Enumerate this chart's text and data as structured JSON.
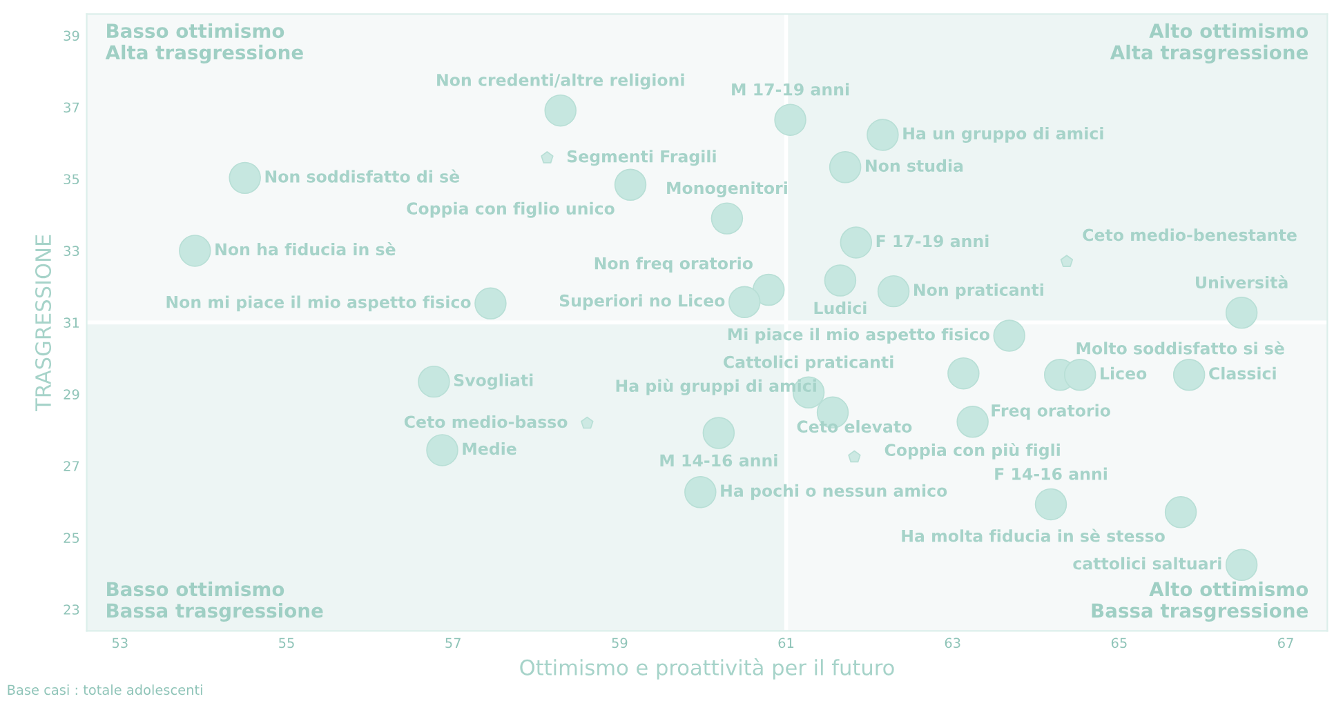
{
  "chart_data": {
    "type": "scatter",
    "xlabel": "Ottimismo e proattività per il futuro",
    "ylabel": "TRASGRESSIONE",
    "xlim": [
      52.6,
      67.5
    ],
    "ylim": [
      22.4,
      39.6
    ],
    "xticks": [
      53,
      55,
      57,
      59,
      61,
      63,
      65,
      67
    ],
    "yticks": [
      23,
      25,
      27,
      29,
      31,
      33,
      35,
      37,
      39
    ],
    "grid": false,
    "legend": false,
    "ref_lines": [
      {
        "axis": "x",
        "value": 61,
        "color": "#ffffff"
      },
      {
        "axis": "y",
        "value": 31,
        "color": "#ffffff"
      }
    ],
    "annotations": [
      "Basso ottimismo\nAlta trasgressione",
      "Alto ottimismo\nAlta trasgressione",
      "Basso ottimismo\nBassa trasgressione",
      "Alto ottimismo\nBassa trasgressione",
      "Base casi : totale adolescenti"
    ],
    "series": [
      {
        "color": "#c6e7e0",
        "marker": "circle",
        "x": [
          58.29,
          54.5,
          53.9,
          61.05,
          62.16,
          61.71,
          59.13,
          60.29,
          61.84,
          61.65,
          60.79,
          60.5,
          62.29,
          57.45,
          66.47,
          63.68,
          63.13,
          64.29,
          64.53,
          65.84,
          63.24,
          61.27,
          61.56,
          56.77,
          60.19,
          56.87,
          59.97,
          64.18,
          65.74,
          66.47
        ],
        "values": [
          36.91,
          35.03,
          33.0,
          36.65,
          36.23,
          35.33,
          34.84,
          33.9,
          33.23,
          32.17,
          31.91,
          31.57,
          31.87,
          31.53,
          31.27,
          30.63,
          29.58,
          29.54,
          29.54,
          29.54,
          28.23,
          29.05,
          28.49,
          29.35,
          27.92,
          27.44,
          26.27,
          25.93,
          25.71,
          24.24
        ],
        "value_labels": [
          "Non credenti/altre religioni",
          "Non soddisfatto di sè",
          "Non ha fiducia in sè",
          "M 17-19 anni",
          "Ha un gruppo di amici",
          "Non studia",
          "Coppia con figlio unico",
          "Monogenitori",
          "F 17-19 anni",
          "Ludici",
          "Non freq oratorio",
          "Superiori no Liceo",
          "Non praticanti",
          "Non mi piace il mio aspetto fisico",
          "Università",
          "Mi piace il mio aspetto fisico",
          "Freq oratorio",
          "Molto soddisfatto si sè",
          "Liceo",
          "Classici",
          "Coppia con più figli",
          "Cattolici praticanti",
          "Ha più gruppi di amici",
          "Svogliati",
          "M 14-16 anni",
          "Medie",
          "Ha pochi o nessun amico",
          "F 14-16 anni",
          "Ha molta fiducia in sè stesso",
          "cattolici saltuari"
        ]
      },
      {
        "color": "#cde9e3",
        "marker": "star",
        "x": [
          58.13,
          64.37,
          61.82,
          58.61
        ],
        "values": [
          35.59,
          32.7,
          27.25,
          28.19
        ],
        "value_labels": [
          "Segmenti Fragili",
          "Ceto medio-benestante",
          "Ceto elevato",
          "Ceto medio-basso"
        ]
      }
    ]
  }
}
